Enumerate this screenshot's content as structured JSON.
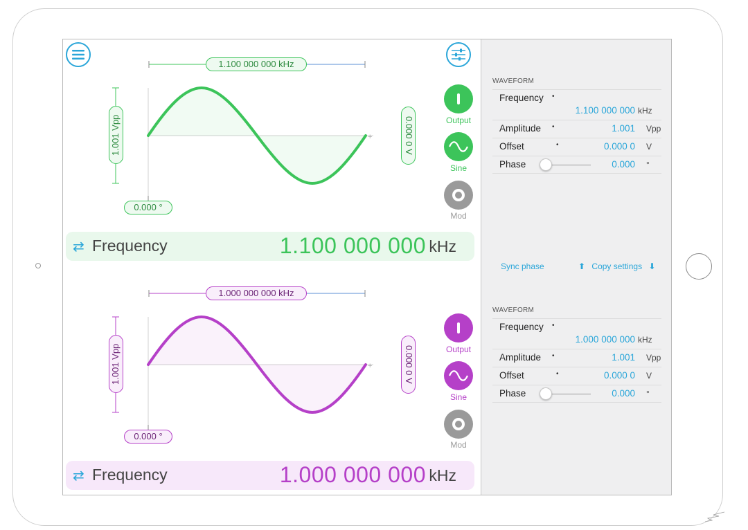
{
  "device": {
    "home_button": "home-button"
  },
  "icons": {
    "menu": "menu-icon",
    "settings": "sliders-icon",
    "output": "power-icon",
    "sine": "sine-wave-icon",
    "mod": "ring-icon",
    "swap": "swap-arrows-icon"
  },
  "colors": {
    "channel1": "#3cc45a",
    "channel2": "#b540c8",
    "accent": "#2aa6d9",
    "mod_gray": "#9a9a9a"
  },
  "channel1": {
    "top_frequency": "1.100 000 000 kHz",
    "amplitude": "1.001 Vpp",
    "offset": "0.000 0 V",
    "phase": "0.000 °",
    "output_label": "Output",
    "sine_label": "Sine",
    "mod_label": "Mod",
    "bar_label": "Frequency",
    "bar_value": "1.100 000 000",
    "bar_unit": "kHz"
  },
  "channel2": {
    "top_frequency": "1.000 000 000 kHz",
    "amplitude": "1.001 Vpp",
    "offset": "0.000 0 V",
    "phase": "0.000 °",
    "output_label": "Output",
    "sine_label": "Sine",
    "mod_label": "Mod",
    "bar_label": "Frequency",
    "bar_value": "1.000 000 000",
    "bar_unit": "kHz"
  },
  "panel1": {
    "title": "WAVEFORM",
    "frequency_label": "Frequency",
    "frequency_value": "1.100 000 000",
    "frequency_unit": "kHz",
    "amplitude_label": "Amplitude",
    "amplitude_value": "1.001",
    "amplitude_unit": "Vpp",
    "offset_label": "Offset",
    "offset_value": "0.000 0",
    "offset_unit": "V",
    "phase_label": "Phase",
    "phase_value": "0.000",
    "phase_unit": "°",
    "bullet": "•"
  },
  "panel2": {
    "title": "WAVEFORM",
    "frequency_label": "Frequency",
    "frequency_value": "1.000 000 000",
    "frequency_unit": "kHz",
    "amplitude_label": "Amplitude",
    "amplitude_value": "1.001",
    "amplitude_unit": "Vpp",
    "offset_label": "Offset",
    "offset_value": "0.000 0",
    "offset_unit": "V",
    "phase_label": "Phase",
    "phase_value": "0.000",
    "phase_unit": "°",
    "bullet": "•"
  },
  "links": {
    "sync_phase": "Sync phase",
    "copy_settings": "Copy settings",
    "copy_up": "⬆",
    "copy_down": "⬇"
  }
}
